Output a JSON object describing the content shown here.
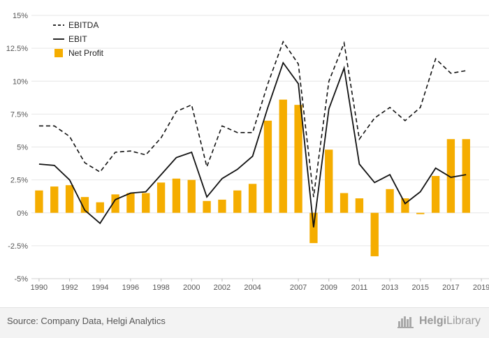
{
  "chart_data": {
    "type": "bar",
    "categories": [
      "1990",
      "1991",
      "1992",
      "1993",
      "1994",
      "1995",
      "1996",
      "1997",
      "1998",
      "1999",
      "2000",
      "2001",
      "2002",
      "2003",
      "2004",
      "2005",
      "2006",
      "2007",
      "2008",
      "2009",
      "2010",
      "2011",
      "2012",
      "2013",
      "2014",
      "2015",
      "2016",
      "2017",
      "2018",
      "2019"
    ],
    "tick_labels": [
      "1990",
      "1992",
      "1994",
      "1996",
      "1998",
      "2000",
      "2002",
      "2004",
      "2007",
      "2009",
      "2011",
      "2013",
      "2015",
      "2017",
      "2019"
    ],
    "y_tick_labels": [
      "15%",
      "12.5%",
      "10%",
      "7.5%",
      "5%",
      "2.5%",
      "0%",
      "-2.5%",
      "-5%"
    ],
    "ylim": [
      -5,
      15
    ],
    "series": [
      {
        "name": "EBITDA",
        "type": "line",
        "style": "dashed",
        "values": [
          6.6,
          6.6,
          5.8,
          3.8,
          3.1,
          4.6,
          4.7,
          4.4,
          5.7,
          7.7,
          8.2,
          3.5,
          6.6,
          6.1,
          6.1,
          9.8,
          13.0,
          11.3,
          1.2,
          10.0,
          12.9,
          5.6,
          7.2,
          8.0,
          7.0,
          8.0,
          11.7,
          10.6,
          10.8,
          null
        ]
      },
      {
        "name": "EBIT",
        "type": "line",
        "style": "solid",
        "values": [
          3.7,
          3.6,
          2.5,
          0.2,
          -0.8,
          1.0,
          1.5,
          1.6,
          2.9,
          4.2,
          4.6,
          1.2,
          2.6,
          3.3,
          4.3,
          8.0,
          11.4,
          9.8,
          -1.1,
          7.9,
          11.0,
          3.7,
          2.3,
          2.9,
          0.7,
          1.6,
          3.4,
          2.7,
          2.9,
          null
        ]
      },
      {
        "name": "Net Profit",
        "type": "bar",
        "values": [
          1.7,
          2.0,
          2.1,
          1.2,
          0.8,
          1.4,
          1.5,
          1.5,
          2.3,
          2.6,
          2.5,
          0.9,
          1.0,
          1.7,
          2.2,
          7.0,
          8.6,
          8.2,
          -2.3,
          4.8,
          1.5,
          1.1,
          -3.3,
          1.8,
          1.1,
          -0.1,
          2.8,
          5.6,
          5.6,
          null
        ]
      }
    ],
    "grid": true,
    "legend_position": "top-left"
  },
  "colors": {
    "bar": "#f5ad00",
    "line": "#111111",
    "grid": "#e6e6e6"
  },
  "footer": {
    "source": "Source: Company Data, Helgi Analytics",
    "brand_bold": "Helgi",
    "brand_light": "Library"
  }
}
